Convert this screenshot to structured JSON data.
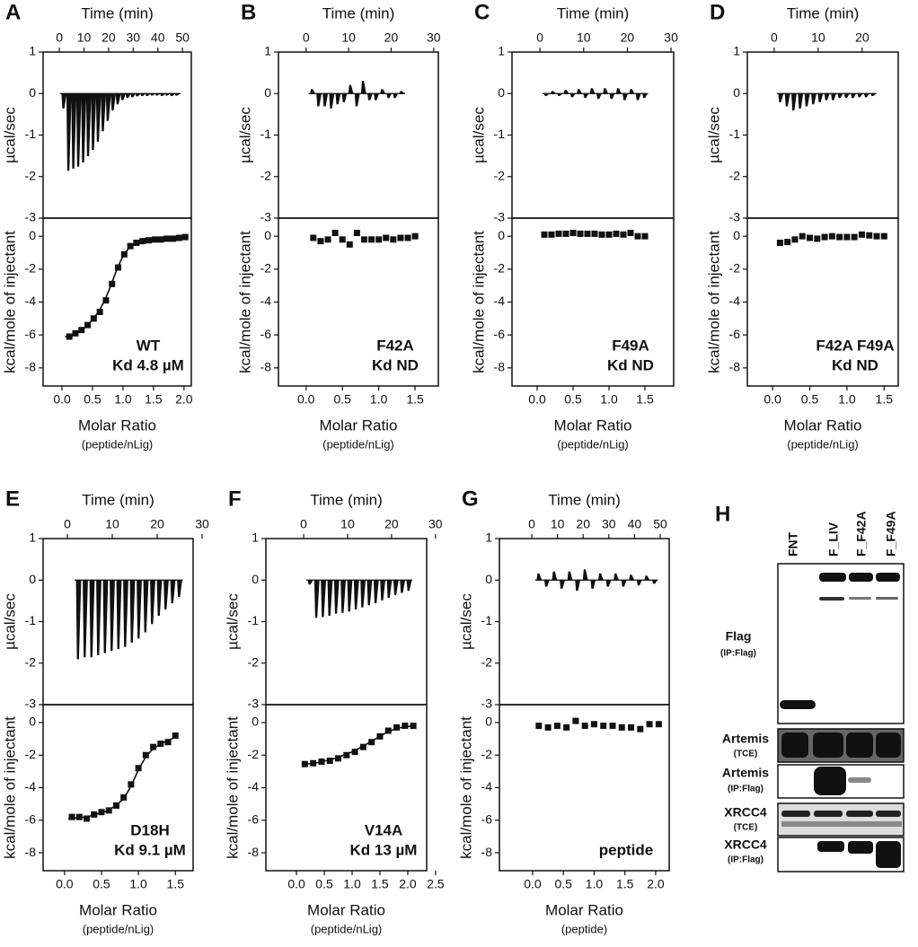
{
  "chart_data": [
    {
      "type": "itc",
      "panel": "A",
      "top": {
        "xlabel": "Time (min)",
        "ylabel": "µcal/sec",
        "xlim": [
          -6.6,
          53.6
        ],
        "xticks": [
          0,
          10,
          20,
          30,
          40,
          50
        ],
        "ylim": [
          -3,
          1
        ],
        "yticks": [
          -3,
          -2,
          -1,
          0,
          1
        ],
        "x": [
          1,
          3,
          5,
          7,
          9,
          11,
          13,
          15,
          17,
          19,
          21,
          23,
          25,
          27,
          29,
          31,
          33,
          35,
          37,
          39,
          41,
          43,
          45,
          47
        ],
        "values": [
          -0.35,
          -1.85,
          -1.8,
          -1.75,
          -1.65,
          -1.5,
          -1.35,
          -1.15,
          -0.9,
          -0.65,
          -0.4,
          -0.25,
          -0.15,
          -0.1,
          -0.08,
          -0.06,
          -0.05,
          -0.05,
          -0.04,
          -0.04,
          -0.05,
          -0.04,
          -0.05,
          -0.04
        ]
      },
      "bottom": {
        "xlabel": "Molar Ratio",
        "xsublabel": "(peptide/nLig)",
        "ylabel": "kcal/mole of injectant",
        "xlim": [
          -0.31,
          2.12
        ],
        "xticks": [
          {
            "value": 0,
            "label": "0.0"
          },
          0.5,
          {
            "value": 1,
            "label": "1.0"
          },
          1.5,
          {
            "value": 2,
            "label": "2.0"
          }
        ],
        "ylim": [
          -9.1,
          1.1
        ],
        "yticks": [
          -8,
          -6,
          -4,
          -2,
          0
        ],
        "x": [
          0.12,
          0.22,
          0.32,
          0.42,
          0.52,
          0.62,
          0.72,
          0.82,
          0.92,
          1.02,
          1.12,
          1.22,
          1.32,
          1.42,
          1.52,
          1.62,
          1.72,
          1.82,
          1.92,
          2.02
        ],
        "values": [
          -6.1,
          -5.9,
          -5.7,
          -5.4,
          -5.0,
          -4.6,
          -3.9,
          -2.9,
          -1.9,
          -1.1,
          -0.6,
          -0.4,
          -0.3,
          -0.25,
          -0.2,
          -0.2,
          -0.15,
          -0.15,
          -0.1,
          -0.05
        ],
        "fit": {
          "x": [
            0.05,
            0.2,
            0.4,
            0.6,
            0.7,
            0.8,
            0.9,
            1.0,
            1.1,
            1.2,
            1.4,
            1.6,
            2.0
          ],
          "values": [
            -6.1,
            -5.95,
            -5.5,
            -4.6,
            -3.9,
            -3.0,
            -2.0,
            -1.2,
            -0.7,
            -0.45,
            -0.25,
            -0.15,
            -0.08
          ]
        },
        "annotation": [
          "WT",
          "Kd 4.8 µM"
        ]
      }
    },
    {
      "type": "itc",
      "panel": "B",
      "top": {
        "xlabel": "Time (min)",
        "ylabel": "µcal/sec",
        "xlim": [
          -6.5,
          31.1
        ],
        "xticks": [
          0,
          10,
          20,
          30
        ],
        "ylim": [
          -3,
          1
        ],
        "yticks": [
          -3,
          -2,
          -1,
          0,
          1
        ],
        "x": [
          1,
          2.5,
          4,
          5.5,
          7,
          8.5,
          10,
          11.5,
          13,
          14.5,
          16,
          17.5,
          19,
          20.5,
          22
        ],
        "values": [
          0.1,
          -0.3,
          -0.3,
          -0.35,
          -0.25,
          -0.2,
          0.2,
          -0.3,
          0.3,
          -0.15,
          -0.15,
          0.1,
          -0.1,
          -0.1,
          0.05
        ]
      },
      "bottom": {
        "xlabel": "Molar Ratio",
        "xsublabel": "(peptide/nLig)",
        "ylabel": "kcal/mole of injectant",
        "xlim": [
          -0.38,
          1.82
        ],
        "xticks": [
          {
            "value": 0,
            "label": "0.0"
          },
          0.5,
          {
            "value": 1,
            "label": "1.0"
          },
          1.5
        ],
        "ylim": [
          -9.1,
          1.1
        ],
        "yticks": [
          -8,
          -6,
          -4,
          -2,
          0
        ],
        "x": [
          0.1,
          0.2,
          0.3,
          0.4,
          0.5,
          0.6,
          0.7,
          0.8,
          0.9,
          1.0,
          1.1,
          1.2,
          1.3,
          1.4,
          1.5
        ],
        "values": [
          -0.1,
          -0.3,
          -0.2,
          0.2,
          -0.2,
          -0.5,
          0.2,
          -0.2,
          -0.2,
          -0.2,
          -0.1,
          -0.2,
          -0.1,
          -0.1,
          0.0
        ],
        "annotation": [
          "F42A",
          "Kd ND"
        ]
      }
    },
    {
      "type": "itc",
      "panel": "C",
      "top": {
        "xlabel": "Time (min)",
        "ylabel": "µcal/sec",
        "xlim": [
          -6.4,
          30.6
        ],
        "xticks": [
          0,
          10,
          20,
          30
        ],
        "ylim": [
          -3,
          1
        ],
        "yticks": [
          -3,
          -2,
          -1,
          0,
          1
        ],
        "x": [
          1,
          2.5,
          4,
          5.5,
          7,
          8.5,
          10,
          11.5,
          13,
          14.5,
          16,
          17.5,
          19,
          20.5,
          22,
          23.5
        ],
        "values": [
          -0.05,
          0.05,
          -0.05,
          0.08,
          -0.08,
          0.1,
          -0.1,
          0.12,
          -0.12,
          0.12,
          -0.12,
          0.12,
          -0.15,
          0.1,
          -0.15,
          -0.1
        ]
      },
      "bottom": {
        "xlabel": "Molar Ratio",
        "xsublabel": "(peptide/nLig)",
        "ylabel": "kcal/mole of injectant",
        "xlim": [
          -0.35,
          1.9
        ],
        "xticks": [
          {
            "value": 0,
            "label": "0.0"
          },
          0.5,
          {
            "value": 1,
            "label": "1.0"
          },
          1.5
        ],
        "ylim": [
          -9.1,
          1.1
        ],
        "yticks": [
          -8,
          -6,
          -4,
          -2,
          0
        ],
        "x": [
          0.1,
          0.2,
          0.3,
          0.4,
          0.5,
          0.6,
          0.7,
          0.8,
          0.9,
          1.0,
          1.1,
          1.2,
          1.3,
          1.4,
          1.5
        ],
        "values": [
          0.1,
          0.1,
          0.15,
          0.15,
          0.2,
          0.15,
          0.15,
          0.15,
          0.1,
          0.1,
          0.15,
          0.1,
          0.2,
          0.0,
          0.0
        ],
        "annotation": [
          "F49A",
          "Kd ND"
        ]
      }
    },
    {
      "type": "itc",
      "panel": "D",
      "top": {
        "xlabel": "Time (min)",
        "ylabel": "µcal/sec",
        "xlim": [
          -6.1,
          28.2
        ],
        "xticks": [
          0,
          10,
          20
        ],
        "ylim": [
          -3,
          1
        ],
        "yticks": [
          -3,
          -2,
          -1,
          0,
          1
        ],
        "x": [
          1,
          2.5,
          4,
          5.5,
          7,
          8.5,
          10,
          11.5,
          13,
          14.5,
          16,
          17.5,
          19,
          20.5,
          22
        ],
        "values": [
          -0.2,
          -0.3,
          -0.4,
          -0.35,
          -0.3,
          -0.25,
          -0.2,
          -0.15,
          -0.15,
          -0.1,
          -0.1,
          -0.1,
          -0.08,
          -0.08,
          -0.05
        ]
      },
      "bottom": {
        "xlabel": "Molar Ratio",
        "xsublabel": "(peptide/nLig)",
        "ylabel": "kcal/mole of injectant",
        "xlim": [
          -0.34,
          1.69
        ],
        "xticks": [
          {
            "value": 0,
            "label": "0.0"
          },
          0.5,
          {
            "value": 1,
            "label": "1.0"
          },
          1.5
        ],
        "ylim": [
          -9.1,
          1.1
        ],
        "yticks": [
          -8,
          -6,
          -4,
          -2,
          0
        ],
        "x": [
          0.1,
          0.2,
          0.3,
          0.4,
          0.5,
          0.6,
          0.7,
          0.8,
          0.9,
          1.0,
          1.1,
          1.2,
          1.3,
          1.4,
          1.5
        ],
        "values": [
          -0.4,
          -0.35,
          -0.2,
          0.0,
          -0.1,
          -0.15,
          -0.05,
          0.0,
          -0.05,
          -0.05,
          -0.05,
          0.1,
          0.05,
          0.0,
          0.0
        ],
        "annotation": [
          "F42A F49A",
          "Kd ND"
        ]
      }
    },
    {
      "type": "itc",
      "panel": "E",
      "top": {
        "xlabel": "Time (min)",
        "ylabel": "µcal/sec",
        "xlim": [
          -5.4,
          28
        ],
        "xticks": [
          0,
          10,
          20,
          30
        ],
        "ylim": [
          -3,
          1
        ],
        "yticks": [
          -3,
          -2,
          -1,
          0,
          1
        ],
        "x": [
          2,
          3.5,
          5,
          6.5,
          8,
          9.5,
          11,
          12.5,
          14,
          15.5,
          17,
          18.5,
          20,
          21.5,
          23,
          24.5
        ],
        "values": [
          -1.9,
          -1.85,
          -1.85,
          -1.8,
          -1.75,
          -1.7,
          -1.65,
          -1.6,
          -1.5,
          -1.4,
          -1.25,
          -1.05,
          -0.85,
          -0.7,
          -0.55,
          -0.4
        ]
      },
      "bottom": {
        "xlabel": "Molar Ratio",
        "xsublabel": "(peptide/nLig)",
        "ylabel": "kcal/mole of injectant",
        "xlim": [
          -0.29,
          1.74
        ],
        "xticks": [
          {
            "value": 0,
            "label": "0.0"
          },
          0.5,
          {
            "value": 1,
            "label": "1.0"
          },
          1.5
        ],
        "ylim": [
          -9.1,
          1.1
        ],
        "yticks": [
          -8,
          -6,
          -4,
          -2,
          0
        ],
        "x": [
          0.1,
          0.2,
          0.3,
          0.4,
          0.5,
          0.6,
          0.7,
          0.8,
          0.9,
          1.0,
          1.1,
          1.2,
          1.3,
          1.4,
          1.5
        ],
        "values": [
          -5.8,
          -5.8,
          -5.9,
          -5.65,
          -5.5,
          -5.4,
          -5.1,
          -4.6,
          -3.8,
          -2.8,
          -2.0,
          -1.5,
          -1.3,
          -1.2,
          -0.8
        ],
        "fit": {
          "x": [
            0.05,
            0.3,
            0.6,
            0.8,
            0.9,
            1.0,
            1.1,
            1.2,
            1.35,
            1.5
          ],
          "values": [
            -5.9,
            -5.8,
            -5.4,
            -4.7,
            -3.9,
            -2.9,
            -2.1,
            -1.6,
            -1.2,
            -0.9
          ]
        },
        "annotation": [
          "D18H",
          "Kd 9.1 µM"
        ]
      }
    },
    {
      "type": "itc",
      "panel": "F",
      "top": {
        "xlabel": "Time (min)",
        "ylabel": "µcal/sec",
        "xlim": [
          -8.6,
          28
        ],
        "xticks": [
          0,
          10,
          20,
          30
        ],
        "ylim": [
          -3,
          1
        ],
        "yticks": [
          -3,
          -2,
          -1,
          0,
          1
        ],
        "x": [
          1,
          2.5,
          4,
          5.5,
          7,
          8.5,
          10,
          11.5,
          13,
          14.5,
          16,
          17.5,
          19,
          20.5,
          22,
          23.5
        ],
        "values": [
          -0.1,
          -0.9,
          -0.88,
          -0.85,
          -0.8,
          -0.78,
          -0.75,
          -0.7,
          -0.65,
          -0.6,
          -0.55,
          -0.48,
          -0.42,
          -0.35,
          -0.3,
          -0.25
        ]
      },
      "bottom": {
        "xlabel": "Molar Ratio",
        "xsublabel": "(peptide/nLig)",
        "ylabel": "kcal/mole of injectant",
        "xlim": [
          -0.55,
          2.34
        ],
        "xticks": [
          {
            "value": 0,
            "label": "0.0"
          },
          0.5,
          {
            "value": 1,
            "label": "1.0"
          },
          1.5,
          {
            "value": 2,
            "label": "2.0"
          },
          2.5
        ],
        "ylim": [
          -9.1,
          1.1
        ],
        "yticks": [
          -8,
          -6,
          -4,
          -2,
          0
        ],
        "x": [
          0.15,
          0.3,
          0.45,
          0.6,
          0.75,
          0.9,
          1.05,
          1.2,
          1.35,
          1.5,
          1.65,
          1.8,
          1.95,
          2.1
        ],
        "values": [
          -2.55,
          -2.5,
          -2.4,
          -2.35,
          -2.2,
          -2.0,
          -1.8,
          -1.5,
          -1.2,
          -0.85,
          -0.5,
          -0.3,
          -0.2,
          -0.2
        ],
        "fit": {
          "x": [
            0.1,
            0.4,
            0.7,
            1.0,
            1.2,
            1.4,
            1.6,
            1.8,
            2.1
          ],
          "values": [
            -2.6,
            -2.45,
            -2.2,
            -1.8,
            -1.45,
            -1.05,
            -0.65,
            -0.35,
            -0.2
          ]
        },
        "annotation": [
          "V14A",
          "Kd 13 µM"
        ]
      }
    },
    {
      "type": "itc",
      "panel": "G",
      "top": {
        "xlabel": "Time (min)",
        "ylabel": "µcal/sec",
        "xlim": [
          -12.6,
          53.5
        ],
        "xticks": [
          0,
          10,
          20,
          30,
          40,
          50
        ],
        "ylim": [
          -3,
          1
        ],
        "yticks": [
          -3,
          -2,
          -1,
          0,
          1
        ],
        "x": [
          2,
          5,
          8,
          11,
          14,
          17,
          20,
          23,
          26,
          29,
          32,
          35,
          38,
          41,
          44,
          47
        ],
        "values": [
          0.15,
          -0.15,
          0.2,
          -0.2,
          0.2,
          -0.25,
          0.25,
          -0.2,
          0.15,
          -0.15,
          0.15,
          -0.15,
          0.12,
          -0.12,
          0.1,
          -0.08
        ]
      },
      "bottom": {
        "xlabel": "Molar Ratio",
        "xsublabel": "(peptide)",
        "ylabel": "kcal/mole of injectant",
        "xlim": [
          -0.54,
          2.22
        ],
        "xticks": [
          {
            "value": 0,
            "label": "0.0"
          },
          0.5,
          {
            "value": 1,
            "label": "1.0"
          },
          1.5,
          {
            "value": 2,
            "label": "2.0"
          }
        ],
        "ylim": [
          -9.1,
          1.1
        ],
        "yticks": [
          -8,
          -6,
          -4,
          -2,
          0
        ],
        "x": [
          0.1,
          0.25,
          0.4,
          0.55,
          0.7,
          0.85,
          1.0,
          1.15,
          1.3,
          1.45,
          1.6,
          1.75,
          1.9,
          2.05
        ],
        "values": [
          -0.2,
          -0.3,
          -0.2,
          -0.3,
          0.1,
          -0.2,
          -0.1,
          -0.2,
          -0.2,
          -0.3,
          -0.3,
          -0.4,
          -0.1,
          -0.1
        ],
        "annotation": [
          "peptide"
        ]
      }
    }
  ],
  "blot": {
    "panel": "H",
    "lanes": [
      "FNT",
      "F_LIV",
      "F_F42A",
      "F_F49A"
    ],
    "rows": [
      {
        "label": "Flag",
        "sublabel": "(IP:Flag)"
      },
      {
        "label": "Artemis",
        "sublabel": "(TCE)"
      },
      {
        "label": "Artemis",
        "sublabel": "(IP:Flag)"
      },
      {
        "label": "XRCC4",
        "sublabel": "(TCE)"
      },
      {
        "label": "XRCC4",
        "sublabel": "(IP:Flag)"
      }
    ]
  }
}
